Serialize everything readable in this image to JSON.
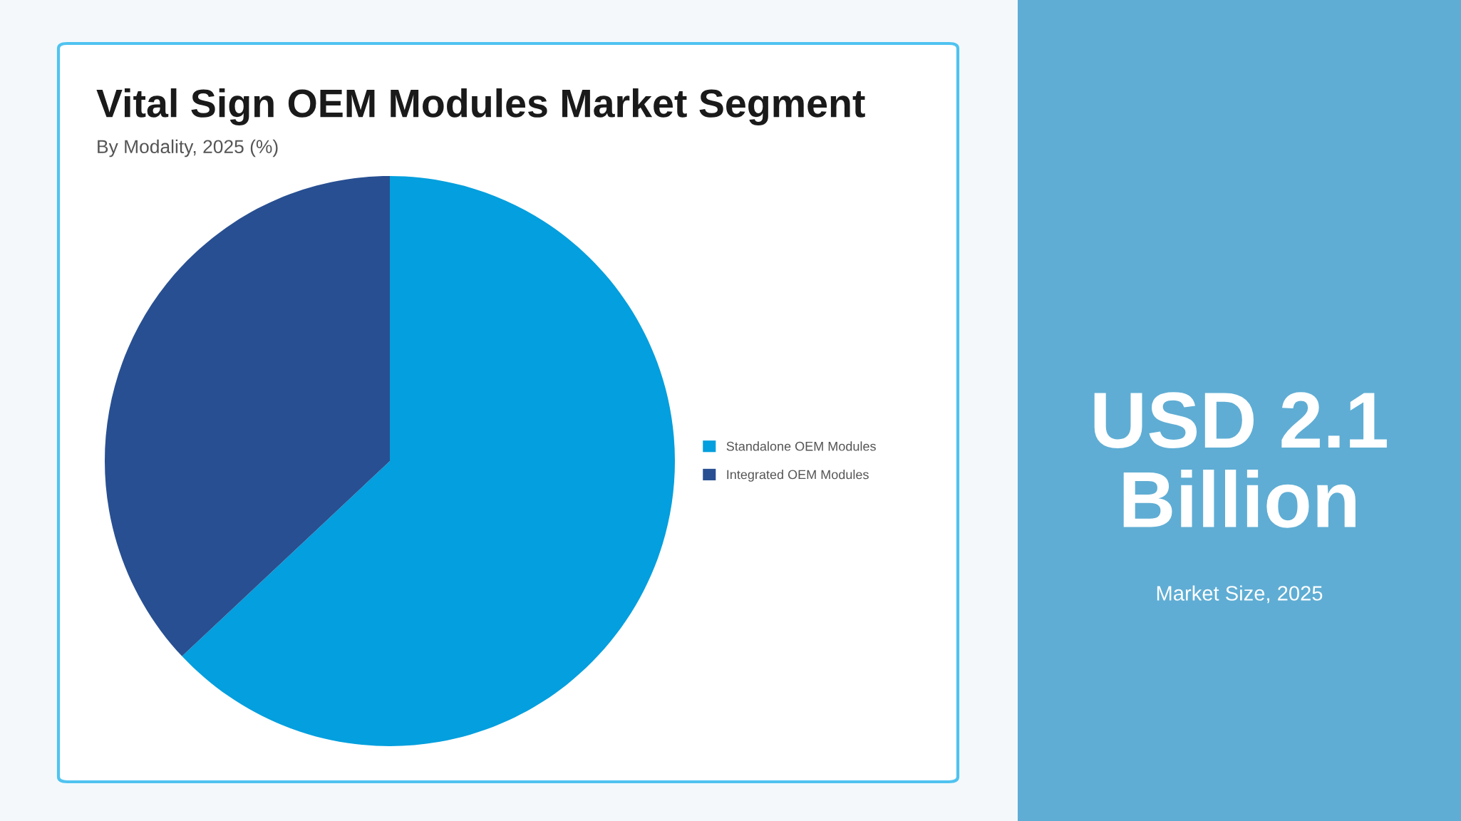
{
  "chart_data": {
    "type": "pie",
    "title": "Vital Sign OEM Modules Market Segment",
    "subtitle": "By Modality, 2025 (%)",
    "categories": [
      "Standalone OEM Modules",
      "Integrated OEM Modules"
    ],
    "values": [
      63,
      37
    ],
    "colors": [
      "#039fde",
      "#284f91"
    ],
    "legend": "right",
    "annotations": [
      "USD 2.1 Billion",
      "Market Size, 2025"
    ]
  }
}
